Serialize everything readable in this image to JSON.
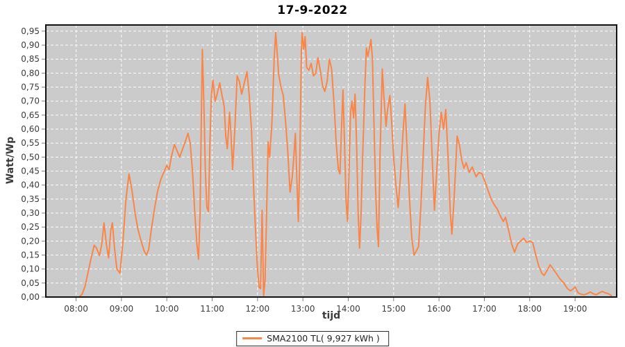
{
  "title": "17-9-2022",
  "colors": {
    "series": "#fa8548",
    "plot_bg": "#cbcbcb",
    "grid": "#ffffff",
    "plot_border": "#111111",
    "tick": "#7f7f7f",
    "tick_text": "#3c3c3c",
    "background": "#ffffff"
  },
  "chart_data": {
    "type": "line",
    "title": "17-9-2022",
    "xlabel": "tijd",
    "ylabel": "Watt/Wp",
    "legend_position": "bottom-center",
    "grid": "white dashed on gray plot",
    "x_range": [
      "07:20",
      "19:55"
    ],
    "ylim": [
      0,
      0.972
    ],
    "x_ticks": [
      "08:00",
      "09:00",
      "10:00",
      "11:00",
      "12:00",
      "13:00",
      "14:00",
      "15:00",
      "16:00",
      "17:00",
      "18:00",
      "19:00"
    ],
    "y_ticks": [
      {
        "v": 0.0,
        "label": "0,00"
      },
      {
        "v": 0.05,
        "label": "0,05"
      },
      {
        "v": 0.1,
        "label": "0,10"
      },
      {
        "v": 0.15,
        "label": "0,15"
      },
      {
        "v": 0.2,
        "label": "0,20"
      },
      {
        "v": 0.25,
        "label": "0,25"
      },
      {
        "v": 0.3,
        "label": "0,30"
      },
      {
        "v": 0.35,
        "label": "0,35"
      },
      {
        "v": 0.4,
        "label": "0,40"
      },
      {
        "v": 0.45,
        "label": "0,45"
      },
      {
        "v": 0.5,
        "label": "0,50"
      },
      {
        "v": 0.55,
        "label": "0,55"
      },
      {
        "v": 0.6,
        "label": "0,60"
      },
      {
        "v": 0.65,
        "label": "0,65"
      },
      {
        "v": 0.7,
        "label": "0,70"
      },
      {
        "v": 0.75,
        "label": "0,75"
      },
      {
        "v": 0.8,
        "label": "0,80"
      },
      {
        "v": 0.85,
        "label": "0,85"
      },
      {
        "v": 0.9,
        "label": "0,90"
      },
      {
        "v": 0.95,
        "label": "0,95"
      }
    ],
    "legend": [
      {
        "label": "SMA2100 TL( 9,927 kWh )",
        "color": "#fa8548"
      }
    ],
    "series": [
      {
        "name": "SMA2100 TL( 9,927 kWh )",
        "points": [
          [
            "07:20",
            0.0
          ],
          [
            "07:40",
            0.0
          ],
          [
            "08:00",
            0.0
          ],
          [
            "08:04",
            0.0
          ],
          [
            "08:08",
            0.01
          ],
          [
            "08:12",
            0.04
          ],
          [
            "08:16",
            0.09
          ],
          [
            "08:20",
            0.14
          ],
          [
            "08:24",
            0.185
          ],
          [
            "08:27",
            0.175
          ],
          [
            "08:31",
            0.148
          ],
          [
            "08:34",
            0.19
          ],
          [
            "08:37",
            0.265
          ],
          [
            "08:40",
            0.19
          ],
          [
            "08:43",
            0.14
          ],
          [
            "08:46",
            0.24
          ],
          [
            "08:48",
            0.265
          ],
          [
            "08:51",
            0.17
          ],
          [
            "08:54",
            0.1
          ],
          [
            "08:58",
            0.085
          ],
          [
            "09:02",
            0.2
          ],
          [
            "09:06",
            0.35
          ],
          [
            "09:10",
            0.44
          ],
          [
            "09:14",
            0.38
          ],
          [
            "09:18",
            0.3
          ],
          [
            "09:22",
            0.24
          ],
          [
            "09:26",
            0.2
          ],
          [
            "09:30",
            0.165
          ],
          [
            "09:33",
            0.15
          ],
          [
            "09:36",
            0.17
          ],
          [
            "09:40",
            0.25
          ],
          [
            "09:44",
            0.32
          ],
          [
            "09:48",
            0.38
          ],
          [
            "09:52",
            0.42
          ],
          [
            "09:56",
            0.445
          ],
          [
            "10:00",
            0.47
          ],
          [
            "10:03",
            0.455
          ],
          [
            "10:06",
            0.5
          ],
          [
            "10:10",
            0.545
          ],
          [
            "10:14",
            0.52
          ],
          [
            "10:17",
            0.5
          ],
          [
            "10:21",
            0.53
          ],
          [
            "10:25",
            0.56
          ],
          [
            "10:28",
            0.585
          ],
          [
            "10:31",
            0.55
          ],
          [
            "10:34",
            0.45
          ],
          [
            "10:37",
            0.3
          ],
          [
            "10:40",
            0.185
          ],
          [
            "10:42",
            0.135
          ],
          [
            "10:44",
            0.3
          ],
          [
            "10:46",
            0.7
          ],
          [
            "10:47",
            0.885
          ],
          [
            "10:49",
            0.7
          ],
          [
            "10:51",
            0.45
          ],
          [
            "10:53",
            0.32
          ],
          [
            "10:55",
            0.305
          ],
          [
            "10:57",
            0.55
          ],
          [
            "10:59",
            0.72
          ],
          [
            "11:01",
            0.775
          ],
          [
            "11:04",
            0.7
          ],
          [
            "11:07",
            0.73
          ],
          [
            "11:10",
            0.765
          ],
          [
            "11:13",
            0.72
          ],
          [
            "11:16",
            0.68
          ],
          [
            "11:18",
            0.575
          ],
          [
            "11:20",
            0.53
          ],
          [
            "11:23",
            0.66
          ],
          [
            "11:25",
            0.58
          ],
          [
            "11:27",
            0.455
          ],
          [
            "11:30",
            0.6
          ],
          [
            "11:33",
            0.79
          ],
          [
            "11:36",
            0.77
          ],
          [
            "11:39",
            0.725
          ],
          [
            "11:43",
            0.77
          ],
          [
            "11:46",
            0.805
          ],
          [
            "11:49",
            0.72
          ],
          [
            "11:52",
            0.6
          ],
          [
            "11:55",
            0.38
          ],
          [
            "11:58",
            0.2
          ],
          [
            "12:00",
            0.1
          ],
          [
            "12:02",
            0.035
          ],
          [
            "12:04",
            0.03
          ],
          [
            "12:06",
            0.31
          ],
          [
            "12:08",
            0.005
          ],
          [
            "12:10",
            0.06
          ],
          [
            "12:12",
            0.3
          ],
          [
            "12:14",
            0.555
          ],
          [
            "12:16",
            0.5
          ],
          [
            "12:19",
            0.62
          ],
          [
            "12:22",
            0.85
          ],
          [
            "12:24",
            0.945
          ],
          [
            "12:26",
            0.87
          ],
          [
            "12:28",
            0.795
          ],
          [
            "12:31",
            0.75
          ],
          [
            "12:34",
            0.72
          ],
          [
            "12:37",
            0.63
          ],
          [
            "12:40",
            0.52
          ],
          [
            "12:43",
            0.375
          ],
          [
            "12:46",
            0.43
          ],
          [
            "12:48",
            0.5
          ],
          [
            "12:50",
            0.585
          ],
          [
            "12:52",
            0.42
          ],
          [
            "12:54",
            0.27
          ],
          [
            "12:56",
            0.5
          ],
          [
            "12:58",
            0.88
          ],
          [
            "12:59",
            0.945
          ],
          [
            "13:01",
            0.885
          ],
          [
            "13:03",
            0.93
          ],
          [
            "13:05",
            0.82
          ],
          [
            "13:08",
            0.81
          ],
          [
            "13:11",
            0.835
          ],
          [
            "13:14",
            0.79
          ],
          [
            "13:17",
            0.8
          ],
          [
            "13:20",
            0.855
          ],
          [
            "13:23",
            0.81
          ],
          [
            "13:26",
            0.755
          ],
          [
            "13:29",
            0.735
          ],
          [
            "13:32",
            0.77
          ],
          [
            "13:35",
            0.85
          ],
          [
            "13:38",
            0.815
          ],
          [
            "13:41",
            0.7
          ],
          [
            "13:44",
            0.55
          ],
          [
            "13:47",
            0.455
          ],
          [
            "13:49",
            0.44
          ],
          [
            "13:51",
            0.6
          ],
          [
            "13:53",
            0.74
          ],
          [
            "13:55",
            0.55
          ],
          [
            "13:57",
            0.35
          ],
          [
            "13:59",
            0.27
          ],
          [
            "14:01",
            0.45
          ],
          [
            "14:03",
            0.66
          ],
          [
            "14:05",
            0.7
          ],
          [
            "14:07",
            0.64
          ],
          [
            "14:09",
            0.725
          ],
          [
            "14:11",
            0.55
          ],
          [
            "14:13",
            0.3
          ],
          [
            "14:15",
            0.175
          ],
          [
            "14:17",
            0.3
          ],
          [
            "14:19",
            0.5
          ],
          [
            "14:22",
            0.75
          ],
          [
            "14:24",
            0.89
          ],
          [
            "14:26",
            0.86
          ],
          [
            "14:28",
            0.89
          ],
          [
            "14:30",
            0.92
          ],
          [
            "14:32",
            0.85
          ],
          [
            "14:34",
            0.62
          ],
          [
            "14:36",
            0.4
          ],
          [
            "14:38",
            0.25
          ],
          [
            "14:40",
            0.18
          ],
          [
            "14:42",
            0.5
          ],
          [
            "14:45",
            0.815
          ],
          [
            "14:47",
            0.72
          ],
          [
            "14:50",
            0.61
          ],
          [
            "14:52",
            0.67
          ],
          [
            "14:55",
            0.72
          ],
          [
            "14:57",
            0.64
          ],
          [
            "15:00",
            0.5
          ],
          [
            "15:03",
            0.4
          ],
          [
            "15:06",
            0.32
          ],
          [
            "15:09",
            0.43
          ],
          [
            "15:12",
            0.57
          ],
          [
            "15:15",
            0.69
          ],
          [
            "15:18",
            0.52
          ],
          [
            "15:21",
            0.35
          ],
          [
            "15:24",
            0.21
          ],
          [
            "15:27",
            0.15
          ],
          [
            "15:30",
            0.165
          ],
          [
            "15:33",
            0.18
          ],
          [
            "15:36",
            0.32
          ],
          [
            "15:39",
            0.5
          ],
          [
            "15:42",
            0.68
          ],
          [
            "15:45",
            0.785
          ],
          [
            "15:48",
            0.7
          ],
          [
            "15:51",
            0.5
          ],
          [
            "15:54",
            0.31
          ],
          [
            "15:57",
            0.45
          ],
          [
            "16:00",
            0.58
          ],
          [
            "16:03",
            0.66
          ],
          [
            "16:06",
            0.6
          ],
          [
            "16:09",
            0.67
          ],
          [
            "16:12",
            0.5
          ],
          [
            "16:15",
            0.3
          ],
          [
            "16:17",
            0.225
          ],
          [
            "16:20",
            0.35
          ],
          [
            "16:24",
            0.575
          ],
          [
            "16:27",
            0.545
          ],
          [
            "16:30",
            0.49
          ],
          [
            "16:33",
            0.46
          ],
          [
            "16:36",
            0.48
          ],
          [
            "16:40",
            0.445
          ],
          [
            "16:44",
            0.465
          ],
          [
            "16:49",
            0.43
          ],
          [
            "16:53",
            0.445
          ],
          [
            "16:57",
            0.44
          ],
          [
            "17:01",
            0.41
          ],
          [
            "17:05",
            0.38
          ],
          [
            "17:09",
            0.35
          ],
          [
            "17:13",
            0.33
          ],
          [
            "17:17",
            0.315
          ],
          [
            "17:21",
            0.29
          ],
          [
            "17:25",
            0.27
          ],
          [
            "17:28",
            0.285
          ],
          [
            "17:32",
            0.24
          ],
          [
            "17:36",
            0.19
          ],
          [
            "17:40",
            0.16
          ],
          [
            "17:44",
            0.19
          ],
          [
            "17:48",
            0.2
          ],
          [
            "17:52",
            0.21
          ],
          [
            "17:56",
            0.195
          ],
          [
            "18:00",
            0.2
          ],
          [
            "18:04",
            0.195
          ],
          [
            "18:08",
            0.15
          ],
          [
            "18:12",
            0.11
          ],
          [
            "18:16",
            0.085
          ],
          [
            "18:19",
            0.077
          ],
          [
            "18:23",
            0.095
          ],
          [
            "18:27",
            0.115
          ],
          [
            "18:31",
            0.1
          ],
          [
            "18:35",
            0.085
          ],
          [
            "18:40",
            0.065
          ],
          [
            "18:45",
            0.05
          ],
          [
            "18:50",
            0.03
          ],
          [
            "18:54",
            0.022
          ],
          [
            "18:58",
            0.03
          ],
          [
            "19:00",
            0.036
          ],
          [
            "19:04",
            0.015
          ],
          [
            "19:08",
            0.01
          ],
          [
            "19:12",
            0.008
          ],
          [
            "19:16",
            0.012
          ],
          [
            "19:20",
            0.018
          ],
          [
            "19:24",
            0.012
          ],
          [
            "19:28",
            0.008
          ],
          [
            "19:32",
            0.015
          ],
          [
            "19:36",
            0.02
          ],
          [
            "19:40",
            0.015
          ],
          [
            "19:44",
            0.012
          ],
          [
            "19:48",
            0.005
          ]
        ]
      }
    ]
  }
}
